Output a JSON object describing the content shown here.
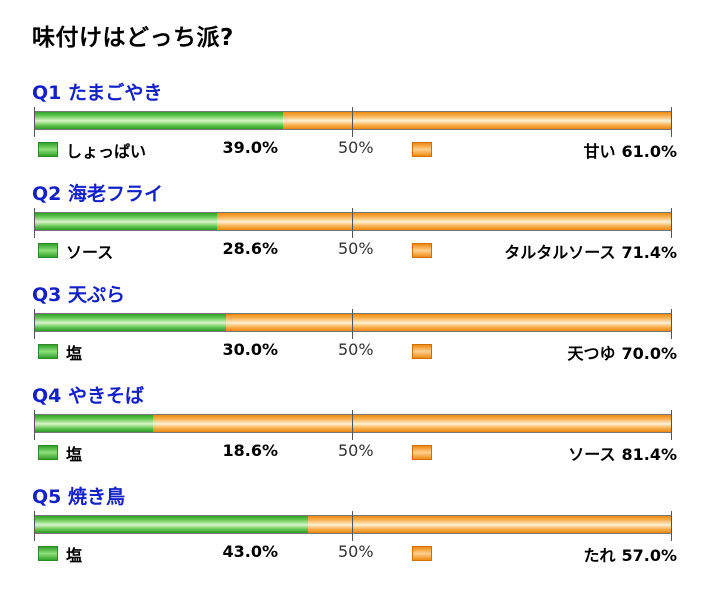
{
  "title": "味付けはどっち派?",
  "chart_data": {
    "type": "bar",
    "stacked": true,
    "orientation": "horizontal",
    "title": "味付けはどっち派?",
    "midpoint_label": "50%",
    "unit": "%",
    "questions": [
      {
        "label": "Q1 たまごやき",
        "left": {
          "name": "しょっぱい",
          "value": 39.0,
          "display": "39.0%"
        },
        "right": {
          "name": "甘い",
          "value": 61.0,
          "display": "61.0%"
        }
      },
      {
        "label": "Q2 海老フライ",
        "left": {
          "name": "ソース",
          "value": 28.6,
          "display": "28.6%"
        },
        "right": {
          "name": "タルタルソース",
          "value": 71.4,
          "display": "71.4%"
        }
      },
      {
        "label": "Q3 天ぷら",
        "left": {
          "name": "塩",
          "value": 30.0,
          "display": "30.0%"
        },
        "right": {
          "name": "天つゆ",
          "value": 70.0,
          "display": "70.0%"
        }
      },
      {
        "label": "Q4 やきそば",
        "left": {
          "name": "塩",
          "value": 18.6,
          "display": "18.6%"
        },
        "right": {
          "name": "ソース",
          "value": 81.4,
          "display": "81.4%"
        }
      },
      {
        "label": "Q5 焼き鳥",
        "left": {
          "name": "塩",
          "value": 43.0,
          "display": "43.0%"
        },
        "right": {
          "name": "たれ",
          "value": 57.0,
          "display": "57.0%"
        }
      }
    ],
    "colors": {
      "left": "#4cb83c",
      "right": "#f59a2a",
      "question_label": "#1420c8"
    }
  }
}
